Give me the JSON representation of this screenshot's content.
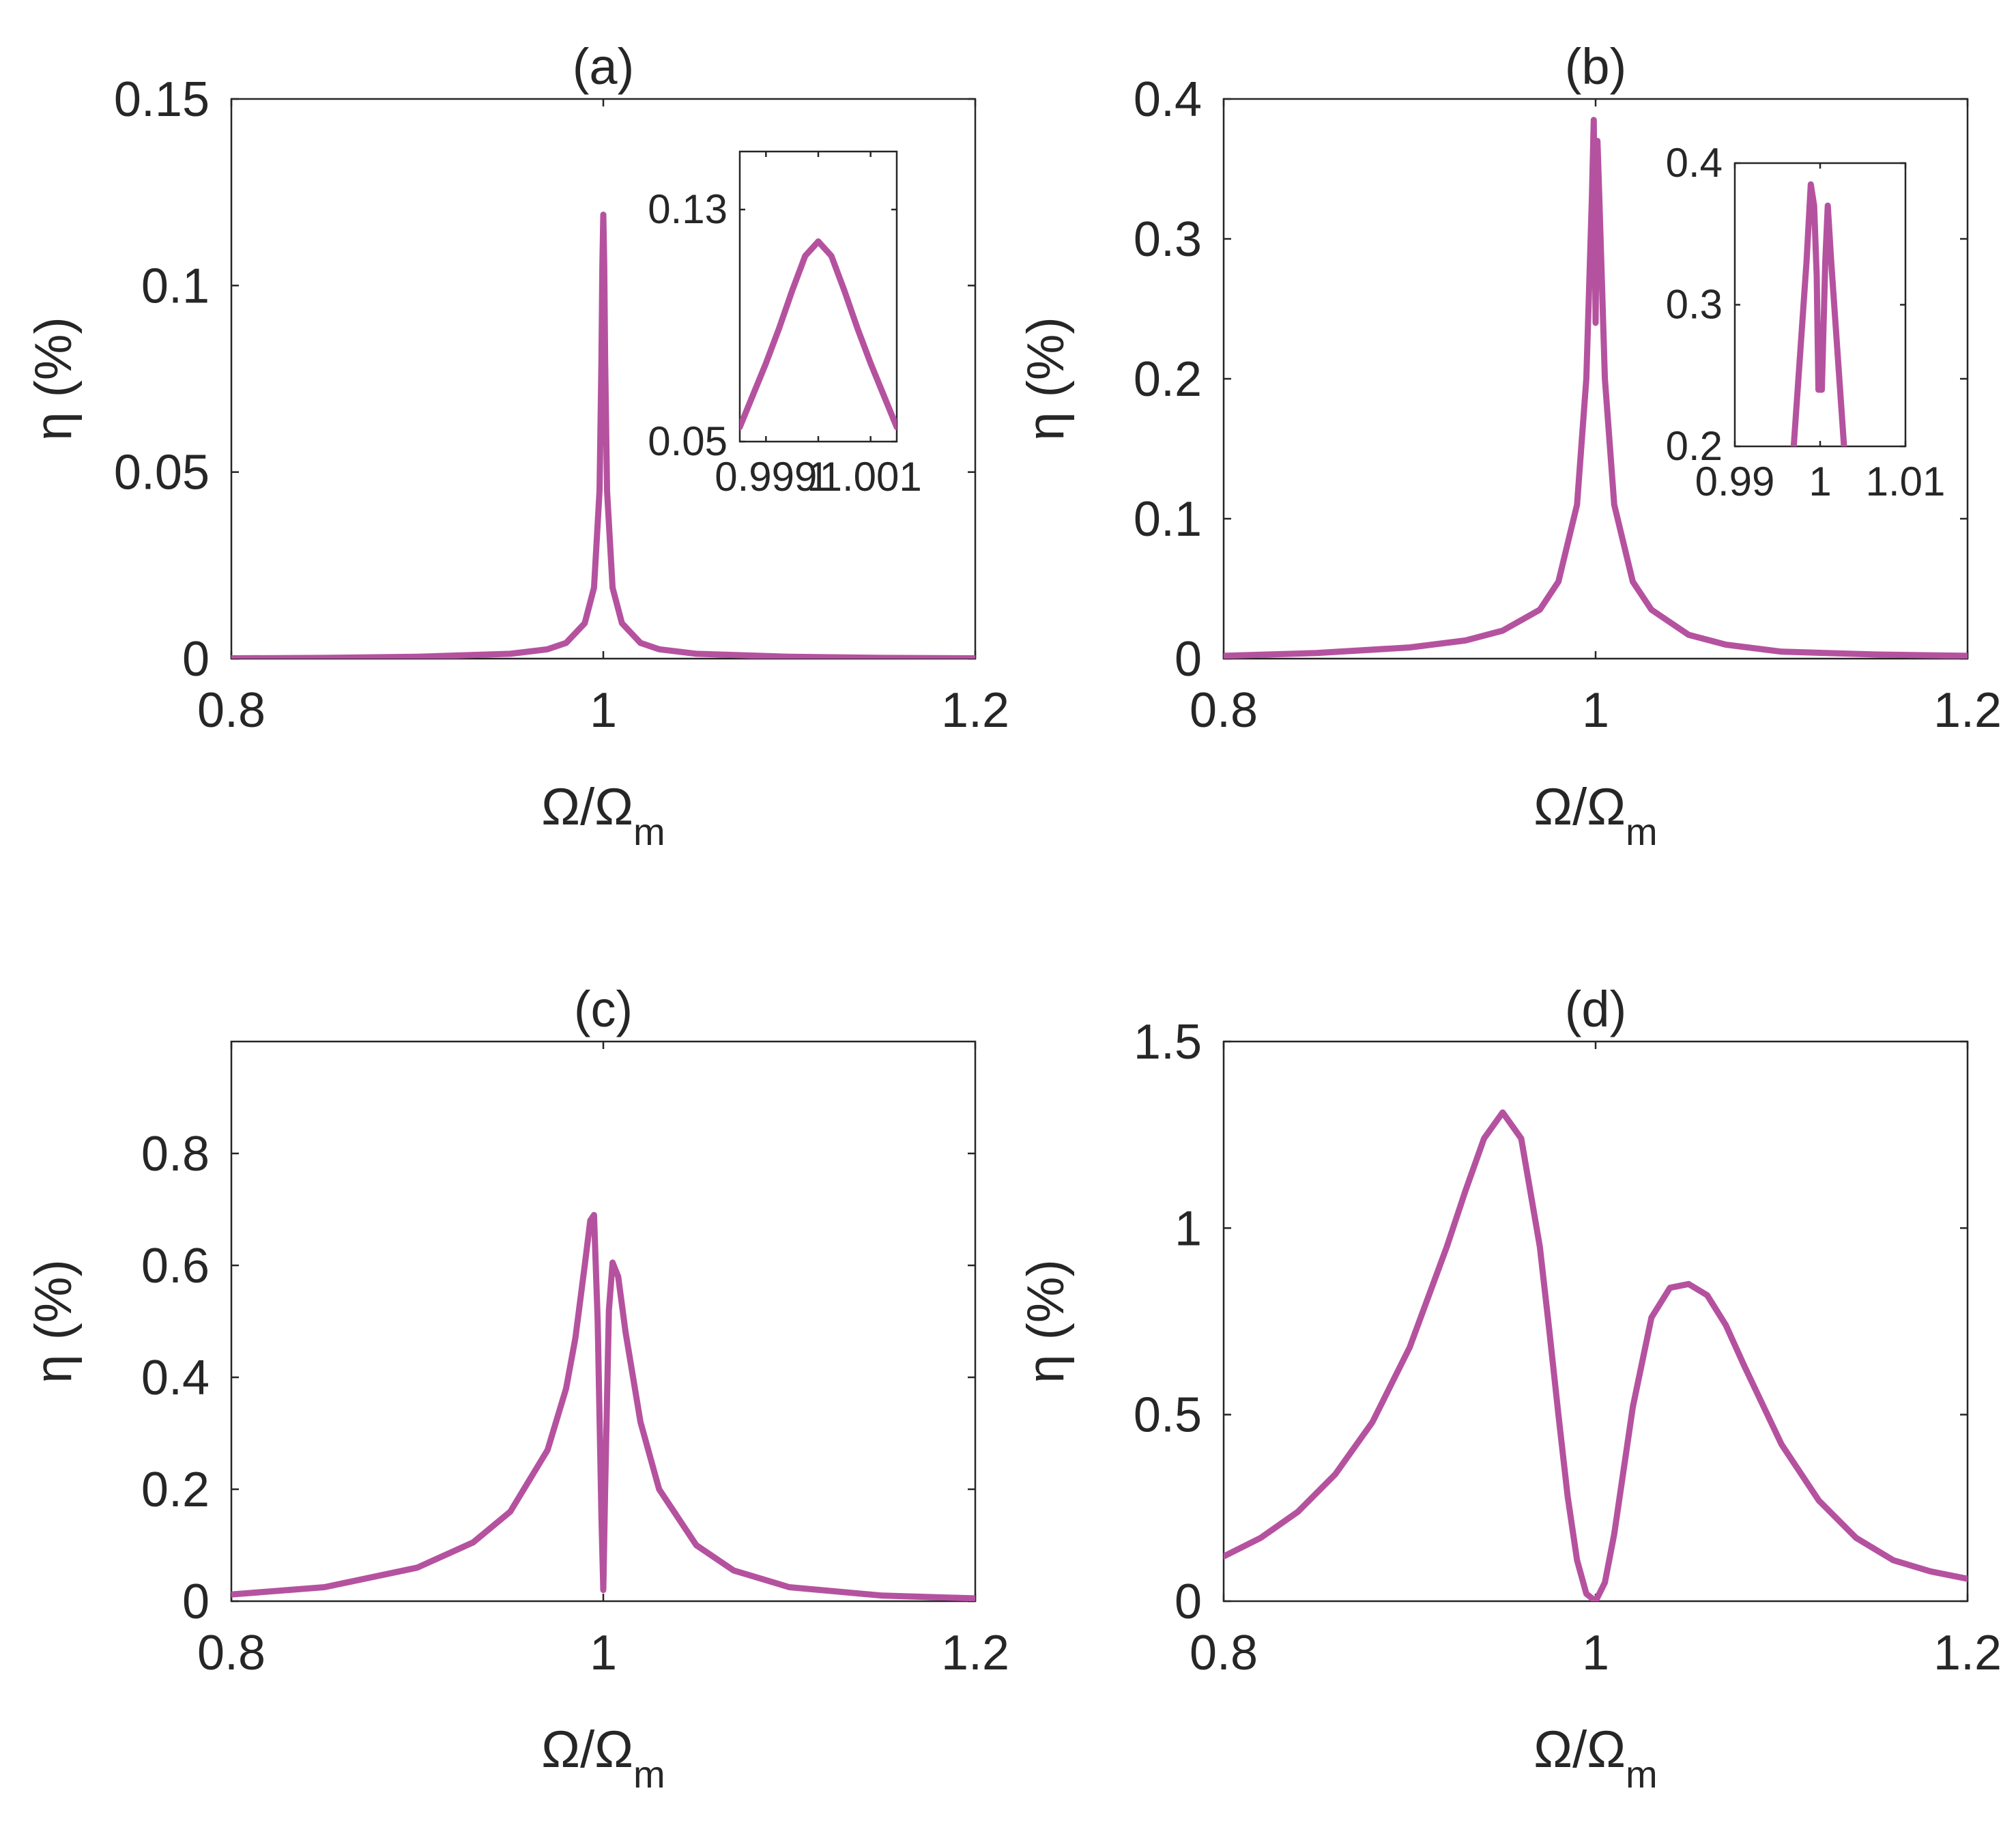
{
  "style": {
    "line_color": "#b5529f",
    "axis_color": "#262626"
  },
  "chart_data": [
    {
      "id": "a",
      "type": "line",
      "title": "(a)",
      "xlabel": "Ω/Ω",
      "xlabel_sub": "m",
      "ylabel": "η (%)",
      "xlim": [
        0.8,
        1.2
      ],
      "ylim": [
        0,
        0.15
      ],
      "xticks": [
        0.8,
        1,
        1.2
      ],
      "xtick_labels": [
        "0.8",
        "1",
        "1.2"
      ],
      "yticks": [
        0,
        0.05,
        0.1,
        0.15
      ],
      "ytick_labels": [
        "0",
        "0.05",
        "0.1",
        "0.15"
      ],
      "x": [
        0.8,
        0.85,
        0.9,
        0.95,
        0.97,
        0.98,
        0.99,
        0.995,
        0.998,
        0.999,
        0.9995,
        1.0,
        1.0005,
        1.001,
        1.002,
        1.005,
        1.01,
        1.02,
        1.03,
        1.05,
        1.1,
        1.15,
        1.2
      ],
      "y": [
        0.0001,
        0.0002,
        0.0005,
        0.0013,
        0.0025,
        0.0042,
        0.0095,
        0.019,
        0.045,
        0.08,
        0.105,
        0.119,
        0.105,
        0.08,
        0.045,
        0.019,
        0.0095,
        0.0042,
        0.0025,
        0.0013,
        0.0005,
        0.0002,
        0.0001
      ],
      "inset": {
        "xlim": [
          0.9985,
          1.0015
        ],
        "ylim": [
          0.05,
          0.15
        ],
        "xticks": [
          0.999,
          1,
          1.001
        ],
        "xtick_labels": [
          "0.999",
          "1",
          "1.001"
        ],
        "yticks": [
          0.05,
          0.13
        ],
        "ytick_labels": [
          "0.05",
          "0.13"
        ],
        "x": [
          0.9985,
          0.99875,
          0.999,
          0.99925,
          0.9995,
          0.99975,
          1.0,
          1.00025,
          1.0005,
          1.00075,
          1.001,
          1.00125,
          1.0015
        ],
        "y": [
          0.055,
          0.066,
          0.077,
          0.089,
          0.102,
          0.114,
          0.119,
          0.114,
          0.102,
          0.089,
          0.077,
          0.066,
          0.055
        ]
      }
    },
    {
      "id": "b",
      "type": "line",
      "title": "(b)",
      "xlabel": "Ω/Ω",
      "xlabel_sub": "m",
      "ylabel": "η (%)",
      "xlim": [
        0.8,
        1.2
      ],
      "ylim": [
        0,
        0.4
      ],
      "xticks": [
        0.8,
        1,
        1.2
      ],
      "xtick_labels": [
        "0.8",
        "1",
        "1.2"
      ],
      "yticks": [
        0,
        0.1,
        0.2,
        0.3,
        0.4
      ],
      "ytick_labels": [
        "0",
        "0.1",
        "0.2",
        "0.3",
        "0.4"
      ],
      "x": [
        0.8,
        0.85,
        0.9,
        0.93,
        0.95,
        0.97,
        0.98,
        0.99,
        0.995,
        0.998,
        0.999,
        1.0,
        1.001,
        1.002,
        1.005,
        1.01,
        1.02,
        1.03,
        1.05,
        1.07,
        1.1,
        1.15,
        1.2
      ],
      "y": [
        0.002,
        0.004,
        0.008,
        0.013,
        0.02,
        0.035,
        0.055,
        0.11,
        0.2,
        0.33,
        0.385,
        0.24,
        0.37,
        0.33,
        0.2,
        0.11,
        0.055,
        0.035,
        0.017,
        0.01,
        0.005,
        0.003,
        0.002
      ],
      "inset": {
        "xlim": [
          0.99,
          1.01
        ],
        "ylim": [
          0.2,
          0.4
        ],
        "xticks": [
          0.99,
          1,
          1.01
        ],
        "xtick_labels": [
          "0.99",
          "1",
          "1.01"
        ],
        "yticks": [
          0.2,
          0.3,
          0.4
        ],
        "ytick_labels": [
          "0.2",
          "0.3",
          "0.4"
        ],
        "x": [
          0.9969,
          0.9984,
          0.9989,
          0.9993,
          0.9996,
          0.9998,
          1.0002,
          1.0006,
          1.0009,
          1.0013,
          1.0028
        ],
        "y": [
          0.2,
          0.33,
          0.385,
          0.37,
          0.32,
          0.24,
          0.24,
          0.33,
          0.37,
          0.33,
          0.2
        ]
      }
    },
    {
      "id": "c",
      "type": "line",
      "title": "(c)",
      "xlabel": "Ω/Ω",
      "xlabel_sub": "m",
      "ylabel": "η (%)",
      "xlim": [
        0.8,
        1.2
      ],
      "ylim": [
        0,
        1.0
      ],
      "xticks": [
        0.8,
        1,
        1.2
      ],
      "xtick_labels": [
        "0.8",
        "1",
        "1.2"
      ],
      "yticks": [
        0,
        0.2,
        0.4,
        0.6,
        0.8
      ],
      "ytick_labels": [
        "0",
        "0.2",
        "0.4",
        "0.6",
        "0.8"
      ],
      "x": [
        0.8,
        0.85,
        0.9,
        0.93,
        0.95,
        0.97,
        0.98,
        0.985,
        0.99,
        0.993,
        0.995,
        0.997,
        0.999,
        1.0,
        1.001,
        1.003,
        1.005,
        1.008,
        1.012,
        1.02,
        1.03,
        1.05,
        1.07,
        1.1,
        1.15,
        1.2
      ],
      "y": [
        0.012,
        0.025,
        0.06,
        0.105,
        0.16,
        0.27,
        0.38,
        0.47,
        0.6,
        0.68,
        0.69,
        0.5,
        0.15,
        0.02,
        0.2,
        0.52,
        0.605,
        0.58,
        0.48,
        0.32,
        0.2,
        0.1,
        0.055,
        0.025,
        0.01,
        0.005
      ]
    },
    {
      "id": "d",
      "type": "line",
      "title": "(d)",
      "xlabel": "Ω/Ω",
      "xlabel_sub": "m",
      "ylabel": "η (%)",
      "xlim": [
        0.8,
        1.2
      ],
      "ylim": [
        0,
        1.5
      ],
      "xticks": [
        0.8,
        1,
        1.2
      ],
      "xtick_labels": [
        "0.8",
        "1",
        "1.2"
      ],
      "yticks": [
        0,
        0.5,
        1,
        1.5
      ],
      "ytick_labels": [
        "0",
        "0.5",
        "1",
        "1.5"
      ],
      "x": [
        0.8,
        0.82,
        0.84,
        0.86,
        0.88,
        0.9,
        0.92,
        0.93,
        0.94,
        0.95,
        0.96,
        0.97,
        0.975,
        0.98,
        0.985,
        0.99,
        0.995,
        1.0,
        1.005,
        1.01,
        1.015,
        1.02,
        1.03,
        1.04,
        1.05,
        1.06,
        1.07,
        1.08,
        1.1,
        1.12,
        1.14,
        1.16,
        1.18,
        1.2
      ],
      "y": [
        0.12,
        0.17,
        0.24,
        0.34,
        0.48,
        0.68,
        0.95,
        1.1,
        1.24,
        1.31,
        1.24,
        0.95,
        0.73,
        0.5,
        0.28,
        0.11,
        0.02,
        0.0,
        0.05,
        0.18,
        0.35,
        0.52,
        0.76,
        0.84,
        0.85,
        0.82,
        0.74,
        0.63,
        0.42,
        0.27,
        0.17,
        0.11,
        0.08,
        0.06
      ]
    }
  ]
}
